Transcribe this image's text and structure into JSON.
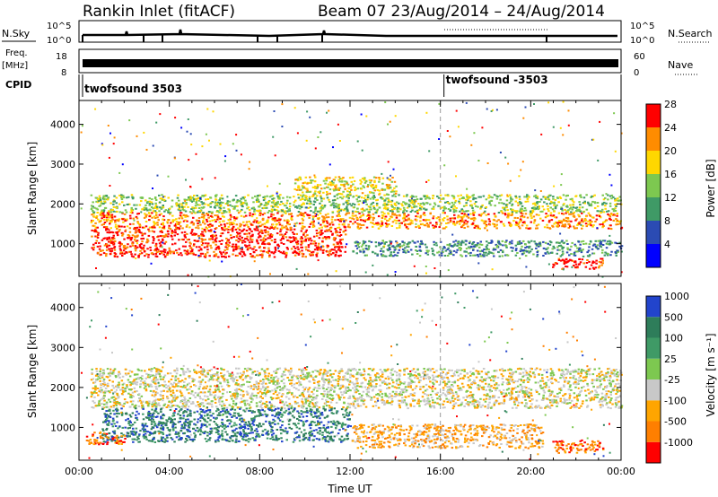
{
  "header": {
    "station": "Rankin Inlet (fitACF)",
    "beam_date": "Beam 07  23/Aug/2014 – 24/Aug/2014"
  },
  "top_panels": {
    "nsky_label": "N.Sky",
    "nsky_ticks": [
      "10^5",
      "10^0"
    ],
    "nsearch_label": "N.Search",
    "nsearch_ticks": [
      "10^5",
      "10^0"
    ],
    "freq_label": "Freq.",
    "freq_unit": "[MHz]",
    "freq_ticks": [
      "18",
      "8"
    ],
    "nave_label": "Nave",
    "nave_ticks": [
      "60",
      "0"
    ],
    "cpid_label": "CPID",
    "cpid_entries": [
      {
        "label": "twofsound 3503",
        "time_h": 0
      },
      {
        "label": "twofsound -3503",
        "time_h": 16
      }
    ]
  },
  "chart_data": [
    {
      "type": "heatmap",
      "title": "",
      "xlabel": "",
      "ylabel": "Slant Range [km]",
      "xlim": [
        0,
        24
      ],
      "ylim": [
        180,
        4600
      ],
      "y_ticks": [
        "1000",
        "2000",
        "3000",
        "4000"
      ],
      "colorbar_label": "Power [dB]",
      "colorbar_ticks": [
        "4",
        "8",
        "12",
        "16",
        "20",
        "24",
        "28"
      ],
      "colors": [
        "#0000ff",
        "#2b4bb3",
        "#3f9a66",
        "#7dc850",
        "#ffd700",
        "#ff8c00",
        "#ff0000"
      ],
      "bands": [
        {
          "t0": 0.5,
          "t1": 11.8,
          "r0": 680,
          "r1": 1400,
          "level": 6
        },
        {
          "t0": 0.5,
          "t1": 24,
          "r0": 1400,
          "r1": 1800,
          "level": 5
        },
        {
          "t0": 0.5,
          "t1": 24,
          "r0": 1800,
          "r1": 2250,
          "level": 3
        },
        {
          "t0": 9.5,
          "t1": 14,
          "r0": 2250,
          "r1": 2700,
          "level": 4
        },
        {
          "t0": 12,
          "t1": 24,
          "r0": 700,
          "r1": 1100,
          "level": 2
        },
        {
          "t0": 20.9,
          "t1": 23.2,
          "r0": 380,
          "r1": 650,
          "level": 6
        }
      ]
    },
    {
      "type": "heatmap",
      "title": "",
      "xlabel": "Time UT",
      "ylabel": "Slant Range [km]",
      "xlim": [
        0,
        24
      ],
      "ylim": [
        180,
        4600
      ],
      "x_ticks": [
        "00:00",
        "04:00",
        "08:00",
        "12:00",
        "16:00",
        "20:00",
        "00:00"
      ],
      "y_ticks": [
        "1000",
        "2000",
        "3000",
        "4000"
      ],
      "colorbar_label": "Velocity [m s⁻¹]",
      "colorbar_ticks": [
        "1000",
        "500",
        "100",
        "25",
        "-25",
        "-100",
        "-500",
        "-1000"
      ],
      "colors": [
        "#2244cc",
        "#2e7d5a",
        "#3f9a66",
        "#7dc850",
        "#c8c8c8",
        "#ffa500",
        "#ff7f00",
        "#ff0000"
      ],
      "bands": [
        {
          "t0": 0.5,
          "t1": 24,
          "r0": 1500,
          "r1": 2500,
          "level": 4
        },
        {
          "t0": 1,
          "t1": 12,
          "r0": 650,
          "r1": 1500,
          "level": 1
        },
        {
          "t0": 0.3,
          "t1": 2,
          "r0": 600,
          "r1": 900,
          "level": 6
        },
        {
          "t0": 12,
          "t1": 20.5,
          "r0": 500,
          "r1": 1100,
          "level": 5
        },
        {
          "t0": 20.9,
          "t1": 23.2,
          "r0": 380,
          "r1": 700,
          "level": 6
        }
      ]
    }
  ]
}
